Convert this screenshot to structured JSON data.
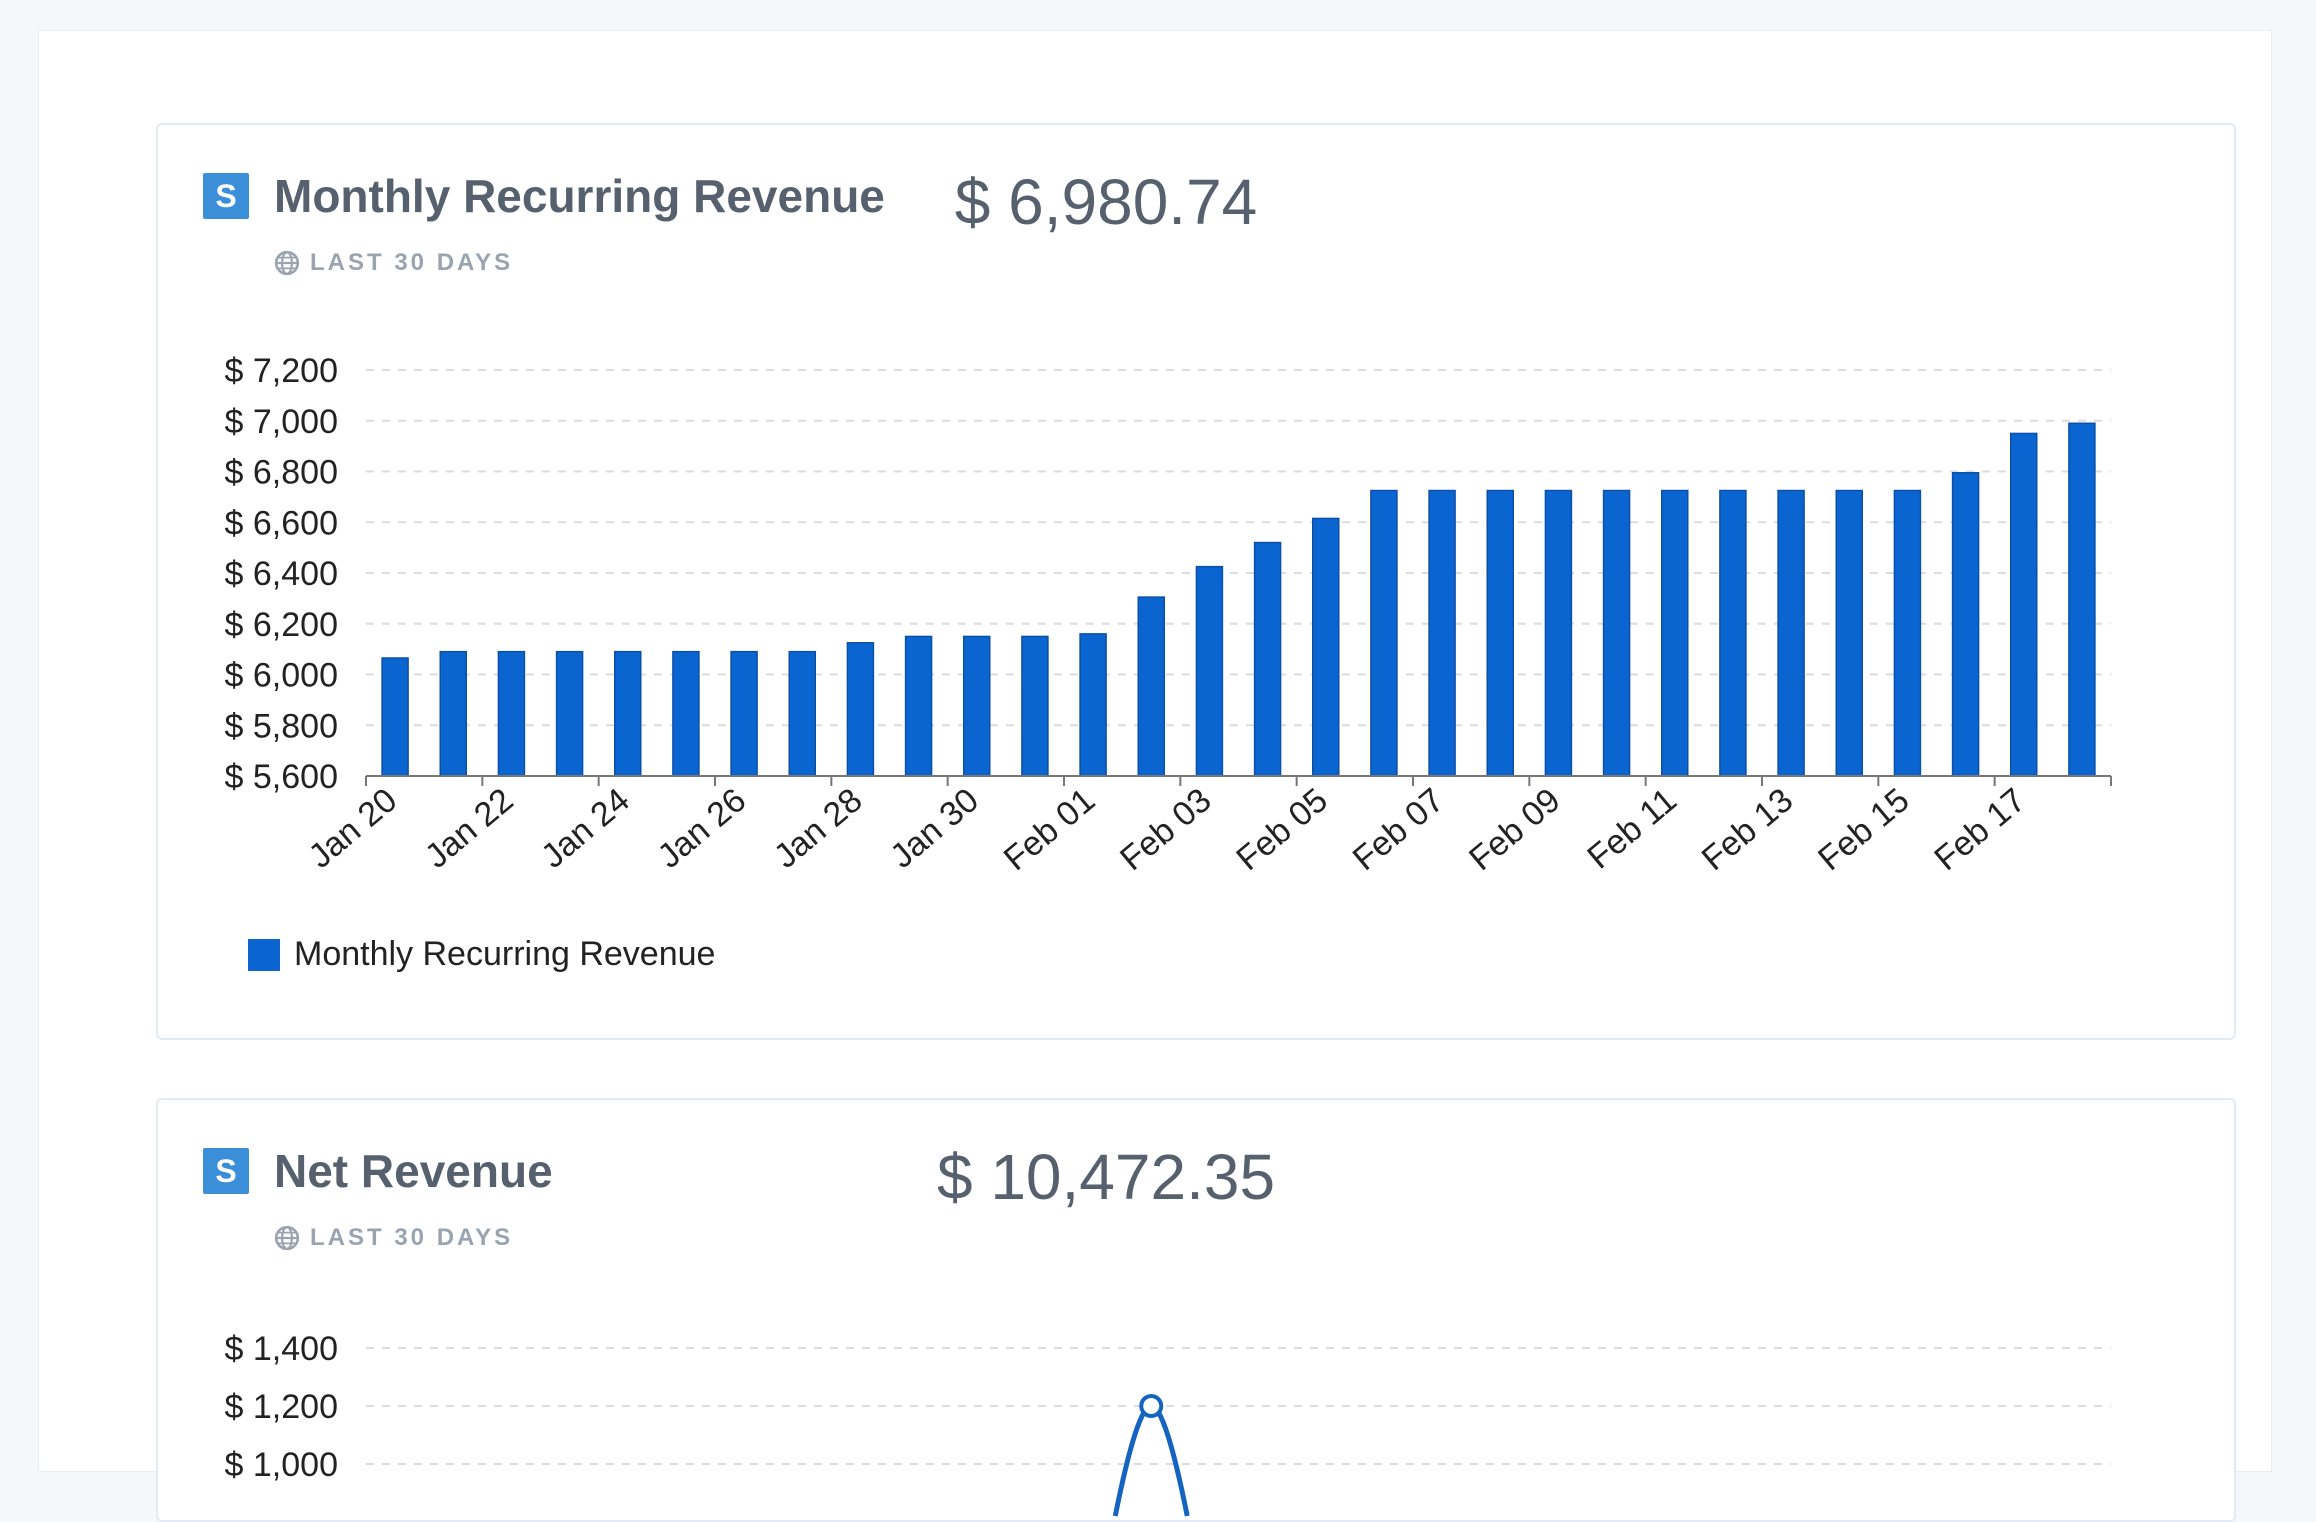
{
  "colors": {
    "bar": "#0b65d1",
    "line": "#1565c0",
    "brand": "#3a8fd8",
    "grid": "#d9dde3",
    "axis": "#777777"
  },
  "cards": [
    {
      "title": "Monthly Recurring Revenue",
      "brand_letter": "S",
      "period_icon": "globe-icon",
      "period": "LAST 30 DAYS",
      "total": "$ 6,980.74",
      "legend_label": "Monthly Recurring Revenue"
    },
    {
      "title": "Net Revenue",
      "brand_letter": "S",
      "period_icon": "globe-icon",
      "period": "LAST 30 DAYS",
      "total": "$ 10,472.35"
    }
  ],
  "chart_data": [
    {
      "type": "bar",
      "series": [
        {
          "name": "Monthly Recurring Revenue",
          "values": [
            6065,
            6090,
            6090,
            6090,
            6090,
            6090,
            6090,
            6090,
            6125,
            6150,
            6150,
            6150,
            6160,
            6305,
            6425,
            6520,
            6615,
            6725,
            6725,
            6725,
            6725,
            6725,
            6725,
            6725,
            6725,
            6725,
            6725,
            6795,
            6950,
            6990
          ]
        }
      ],
      "x_tick_labels": [
        "Jan 20",
        "Jan 22",
        "Jan 24",
        "Jan 26",
        "Jan 28",
        "Jan 30",
        "Feb 01",
        "Feb 03",
        "Feb 05",
        "Feb 07",
        "Feb 09",
        "Feb 11",
        "Feb 13",
        "Feb 15",
        "Feb 17"
      ],
      "y_ticks": [
        5600,
        5800,
        6000,
        6200,
        6400,
        6600,
        6800,
        7000,
        7200
      ],
      "y_tick_labels": [
        "$ 5,600",
        "$ 5,800",
        "$ 6,000",
        "$ 6,200",
        "$ 6,400",
        "$ 6,600",
        "$ 6,800",
        "$ 7,000",
        "$ 7,200"
      ],
      "ylim": [
        5600,
        7200
      ],
      "grid": true,
      "legend": "bottom-left"
    },
    {
      "type": "line",
      "y_ticks": [
        1000,
        1200,
        1400
      ],
      "y_tick_labels": [
        "$ 1,000",
        "$ 1,200",
        "$ 1,400"
      ],
      "ylim": [
        1000,
        1400
      ],
      "grid": true,
      "visible_points": [
        {
          "index": 13,
          "value": 1200
        }
      ]
    }
  ]
}
